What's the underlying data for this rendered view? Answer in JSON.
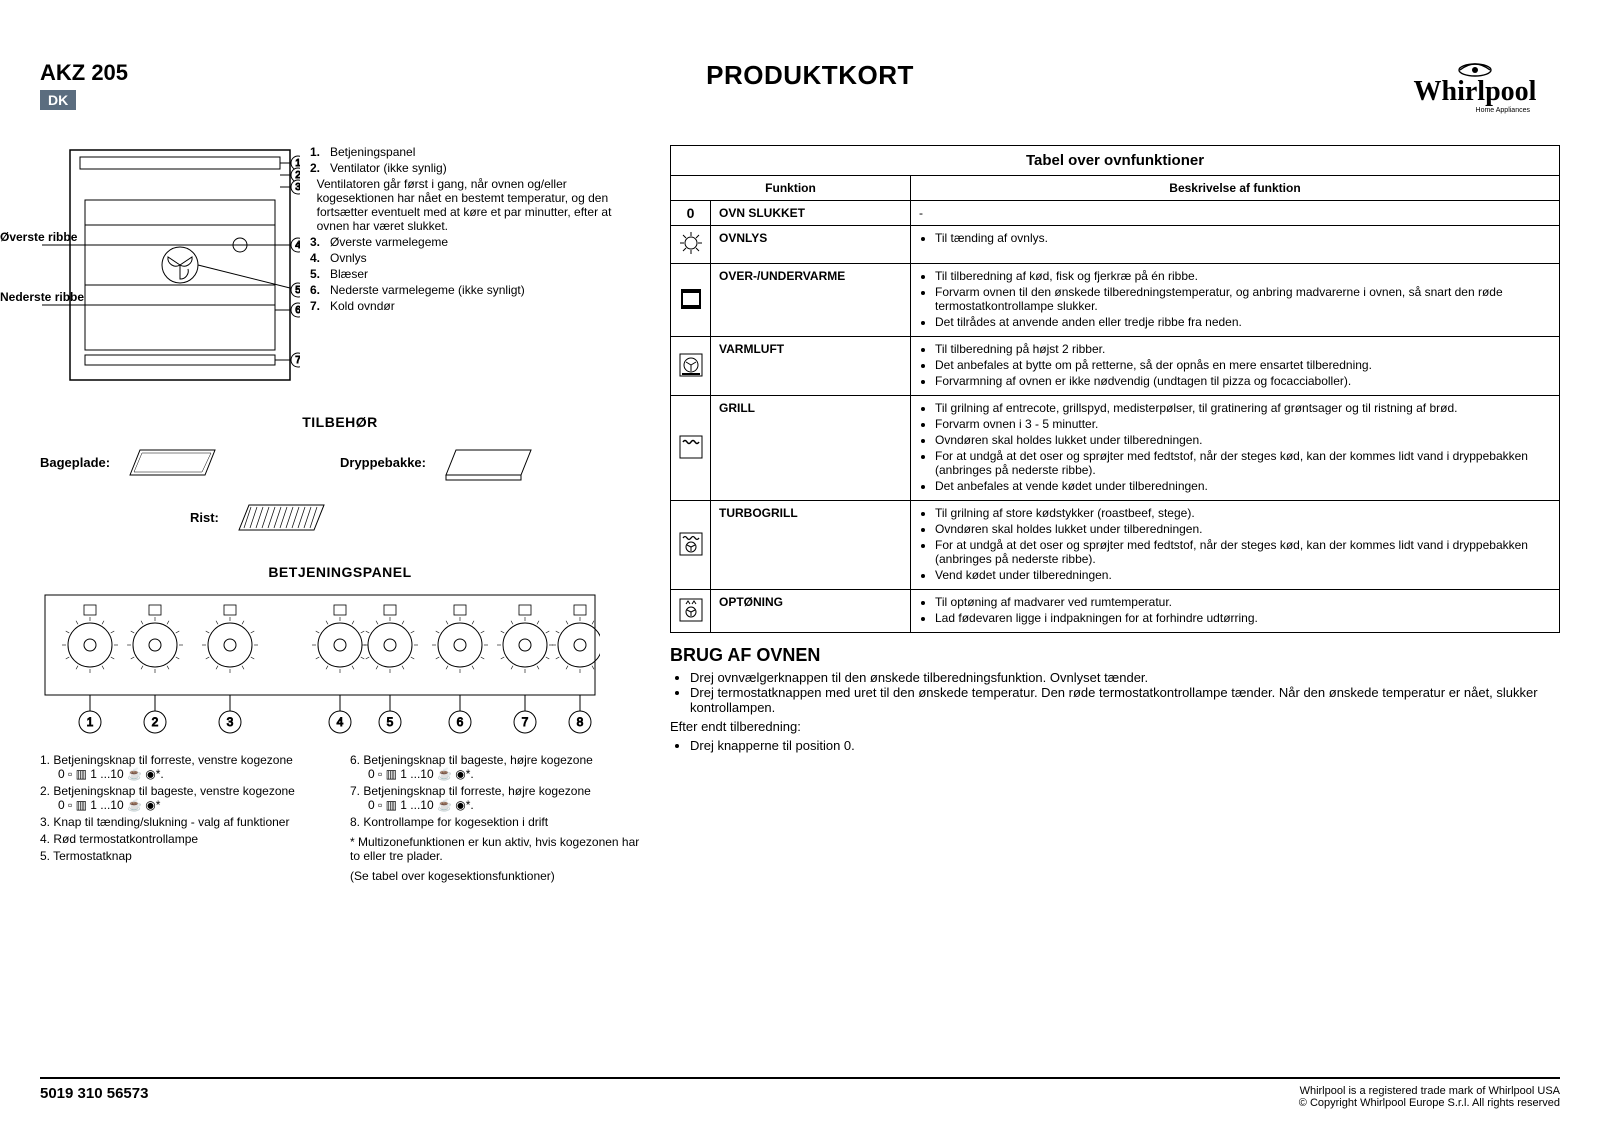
{
  "header": {
    "model": "AKZ 205",
    "lang": "DK",
    "title": "PRODUKTKORT",
    "brand": "Whirlpool",
    "brand_sub": "Home Appliances"
  },
  "diagram": {
    "upper_label": "Øverste ribbe",
    "lower_label": "Nederste ribbe",
    "items": [
      {
        "n": "1.",
        "t": "Betjeningspanel"
      },
      {
        "n": "2.",
        "t": "Ventilator (ikke synlig)"
      },
      {
        "n": "",
        "t": "Ventilatoren går først i gang, når ovnen og/eller kogesektionen har nået en bestemt temperatur, og den fortsætter eventuelt med at køre et par minutter, efter at ovnen har været slukket."
      },
      {
        "n": "3.",
        "t": "Øverste varmelegeme"
      },
      {
        "n": "4.",
        "t": "Ovnlys"
      },
      {
        "n": "5.",
        "t": "Blæser"
      },
      {
        "n": "6.",
        "t": "Nederste varmelegeme (ikke synligt)"
      },
      {
        "n": "7.",
        "t": "Kold ovndør"
      }
    ]
  },
  "accessories": {
    "title": "TILBEHØR",
    "items": [
      {
        "label": "Bageplade:"
      },
      {
        "label": "Dryppebakke:"
      },
      {
        "label": "Rist:"
      }
    ]
  },
  "panel": {
    "title": "BETJENINGSPANEL",
    "legend_left": [
      {
        "n": "1.",
        "t": "Betjeningsknap til forreste, venstre kogezone",
        "sub": "0 ▫ ▥ 1 ...10 ☕ ◉*."
      },
      {
        "n": "2.",
        "t": "Betjeningsknap til bageste, venstre kogezone",
        "sub": "0 ▫ ▥ 1 ...10 ☕ ◉*"
      },
      {
        "n": "3.",
        "t": "Knap til tænding/slukning - valg af funktioner"
      },
      {
        "n": "4.",
        "t": "Rød termostatkontrollampe"
      },
      {
        "n": "5.",
        "t": "Termostatknap"
      }
    ],
    "legend_right": [
      {
        "n": "6.",
        "t": "Betjeningsknap til bageste, højre kogezone",
        "sub": "0 ▫ ▥ 1 ...10 ☕ ◉*."
      },
      {
        "n": "7.",
        "t": "Betjeningsknap til forreste, højre kogezone",
        "sub": "0 ▫ ▥ 1 ...10 ☕ ◉*."
      },
      {
        "n": "8.",
        "t": "Kontrollampe for kogesektion i drift"
      }
    ],
    "note1": "* Multizonefunktionen er kun aktiv, hvis kogezonen har to eller tre plader.",
    "note2": "(Se tabel over kogesektionsfunktioner)"
  },
  "table": {
    "caption": "Tabel over ovnfunktioner",
    "col1": "Funktion",
    "col2": "Beskrivelse af funktion",
    "rows": [
      {
        "icon": "0",
        "name": "OVN SLUKKET",
        "desc_plain": "-"
      },
      {
        "icon": "light",
        "name": "OVNLYS",
        "desc": [
          "Til tænding af ovnlys."
        ]
      },
      {
        "icon": "conv",
        "name": "OVER-/UNDERVARME",
        "desc": [
          "Til tilberedning af kød, fisk og fjerkræ på én ribbe.",
          "Forvarm ovnen til den ønskede tilberedningstemperatur, og anbring madvarerne i ovnen, så snart den røde termostatkontrollampe slukker.",
          "Det tilrådes at anvende anden eller tredje ribbe fra neden."
        ]
      },
      {
        "icon": "fan",
        "name": "VARMLUFT",
        "desc": [
          "Til tilberedning på højst 2 ribber.",
          "Det anbefales at bytte om på retterne, så der opnås en mere ensartet tilberedning.",
          "Forvarmning af ovnen er ikke nødvendig (undtagen til pizza og focacciaboller)."
        ]
      },
      {
        "icon": "grill",
        "name": "GRILL",
        "desc": [
          "Til grilning af entrecote, grillspyd, medisterpølser, til gratinering af grøntsager og til ristning af brød.",
          "Forvarm ovnen i 3 - 5 minutter.",
          "Ovndøren skal holdes lukket under tilberedningen.",
          "For at undgå at det oser og sprøjter med fedtstof, når der steges kød, kan der kommes lidt vand i dryppebakken (anbringes på nederste ribbe).",
          "Det anbefales at vende kødet under tilberedningen."
        ]
      },
      {
        "icon": "turbogrill",
        "name": "TURBOGRILL",
        "desc": [
          "Til grilning af store kødstykker (roastbeef, stege).",
          "Ovndøren skal holdes lukket under tilberedningen.",
          "For at undgå at det oser og sprøjter med fedtstof, når der steges kød, kan der kommes lidt vand i dryppebakken (anbringes på nederste ribbe).",
          "Vend kødet under tilberedningen."
        ]
      },
      {
        "icon": "defrost",
        "name": "OPTØNING",
        "desc": [
          "Til optøning af madvarer ved rumtemperatur.",
          "Lad fødevaren ligge i indpakningen for at forhindre udtørring."
        ]
      }
    ]
  },
  "usage": {
    "title": "BRUG AF OVNEN",
    "bullets": [
      "Drej ovnvælgerknappen til den ønskede tilberedningsfunktion. Ovnlyset tænder.",
      "Drej termostatknappen med uret til den ønskede temperatur. Den røde termostatkontrollampe tænder. Når den ønskede temperatur er nået, slukker kontrollampen."
    ],
    "after": "Efter endt tilberedning:",
    "after_bullets": [
      "Drej knapperne til position 0."
    ]
  },
  "footer": {
    "partno": "5019 310 56573",
    "legal1": "Whirlpool is a registered trade mark of Whirlpool USA",
    "legal2": "© Copyright Whirlpool Europe S.r.l. All rights reserved"
  }
}
